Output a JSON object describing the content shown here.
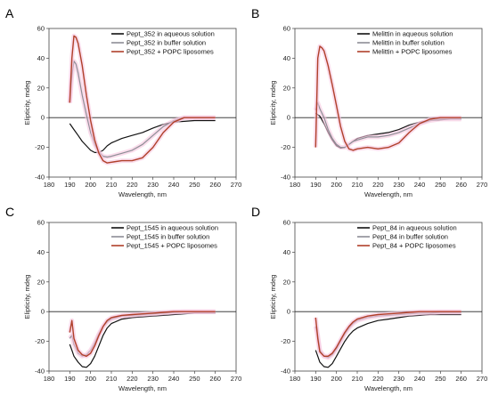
{
  "figure": {
    "x_axis_label": "Wavelength, nm",
    "y_axis_label": "Elipticity, mdeg"
  },
  "colors": {
    "black": "#111111",
    "gray": "#8e8e96",
    "red": "#b0402a",
    "band": "#f7c6df"
  },
  "chart_data": [
    {
      "panel": "A",
      "type": "line",
      "xlabel": "Wavelength, nm",
      "ylabel": "Elipticity, mdeg",
      "xlim": [
        180,
        270
      ],
      "ylim": [
        -40,
        60
      ],
      "xticks": [
        180,
        190,
        200,
        210,
        220,
        230,
        240,
        250,
        260,
        270
      ],
      "yticks": [
        -40,
        -20,
        0,
        20,
        40,
        60
      ],
      "legend_position": "top-right",
      "series": [
        {
          "name": "Pept_352 in aqueous solution",
          "color": "black",
          "x": [
            190,
            192,
            194,
            196,
            198,
            200,
            202,
            204,
            206,
            208,
            210,
            215,
            220,
            225,
            230,
            235,
            240,
            245,
            250,
            255,
            260
          ],
          "y": [
            -4,
            -8,
            -12,
            -16,
            -19,
            -22,
            -23.5,
            -23.5,
            -22,
            -19,
            -17,
            -14,
            -12,
            -10,
            -7,
            -4.5,
            -3,
            -2.5,
            -2,
            -2,
            -2
          ]
        },
        {
          "name": "Pept_352 in buffer solution",
          "color": "gray",
          "x": [
            190,
            191,
            192,
            193,
            194,
            196,
            198,
            200,
            202,
            204,
            206,
            208,
            210,
            215,
            220,
            225,
            230,
            235,
            240,
            245,
            250,
            255,
            260
          ],
          "y": [
            10,
            28,
            38,
            36,
            30,
            15,
            2,
            -10,
            -18,
            -23,
            -26,
            -26.5,
            -26,
            -24,
            -22,
            -18,
            -12,
            -6,
            -2,
            0,
            0,
            0,
            0
          ]
        },
        {
          "name": "Pept_352 + POPC liposomes",
          "color": "red",
          "x": [
            190,
            191,
            192,
            193,
            194,
            196,
            198,
            200,
            202,
            204,
            206,
            208,
            210,
            215,
            220,
            225,
            230,
            235,
            240,
            245,
            250,
            255,
            260
          ],
          "y": [
            10,
            40,
            55,
            54,
            50,
            35,
            15,
            -2,
            -15,
            -24,
            -29,
            -30.5,
            -30,
            -29,
            -29,
            -27,
            -20,
            -10,
            -3,
            0,
            0,
            0,
            0
          ]
        }
      ]
    },
    {
      "panel": "B",
      "type": "line",
      "xlabel": "Wavelength, nm",
      "ylabel": "Elipticity, mdeg",
      "xlim": [
        180,
        270
      ],
      "ylim": [
        -40,
        60
      ],
      "xticks": [
        180,
        190,
        200,
        210,
        220,
        230,
        240,
        250,
        260,
        270
      ],
      "yticks": [
        -40,
        -20,
        0,
        20,
        40,
        60
      ],
      "legend_position": "top-right",
      "series": [
        {
          "name": "Melittin in aqueous solution",
          "color": "black",
          "x": [
            190,
            192,
            194,
            196,
            198,
            200,
            202,
            204,
            206,
            208,
            210,
            215,
            220,
            225,
            230,
            235,
            240,
            245,
            250,
            255,
            260
          ],
          "y": [
            3,
            1,
            -4,
            -10,
            -15,
            -19,
            -20.5,
            -20,
            -18,
            -16,
            -14,
            -12,
            -11,
            -10,
            -8,
            -5,
            -3,
            -2,
            -1.5,
            -1,
            -1
          ]
        },
        {
          "name": "Melittin in buffer solution",
          "color": "gray",
          "x": [
            190,
            191,
            192,
            194,
            196,
            198,
            200,
            202,
            204,
            206,
            208,
            210,
            215,
            220,
            225,
            230,
            235,
            240,
            245,
            250,
            255,
            260
          ],
          "y": [
            5,
            10,
            6,
            0,
            -8,
            -14,
            -18,
            -20,
            -20,
            -18,
            -16,
            -15,
            -13,
            -13,
            -12,
            -10,
            -7,
            -4,
            -2,
            -1,
            -1,
            -1
          ]
        },
        {
          "name": "Melittin + POPC liposomes",
          "color": "red",
          "x": [
            190,
            191,
            192,
            193,
            194,
            195,
            196,
            198,
            200,
            202,
            204,
            206,
            208,
            210,
            215,
            220,
            225,
            230,
            235,
            240,
            245,
            250,
            255,
            260
          ],
          "y": [
            -20,
            40,
            48,
            47,
            45,
            40,
            35,
            22,
            8,
            -6,
            -16,
            -21,
            -22,
            -21,
            -20,
            -21,
            -20,
            -17,
            -10,
            -4,
            -1,
            0,
            0,
            0
          ]
        }
      ]
    },
    {
      "panel": "C",
      "type": "line",
      "xlabel": "Wavelength, nm",
      "ylabel": "Elipticity, mdeg",
      "xlim": [
        180,
        270
      ],
      "ylim": [
        -40,
        60
      ],
      "xticks": [
        180,
        190,
        200,
        210,
        220,
        230,
        240,
        250,
        260,
        270
      ],
      "yticks": [
        -40,
        -20,
        0,
        20,
        40,
        60
      ],
      "legend_position": "top-right",
      "series": [
        {
          "name": "Pept_1545 in aqueous solution",
          "color": "black",
          "x": [
            190,
            191,
            192,
            194,
            196,
            198,
            200,
            202,
            204,
            206,
            208,
            210,
            215,
            220,
            225,
            230,
            235,
            240,
            245,
            250,
            255,
            260
          ],
          "y": [
            -22,
            -26,
            -30,
            -34,
            -37,
            -37.5,
            -35,
            -30,
            -23,
            -16,
            -11,
            -8,
            -5,
            -4,
            -3.5,
            -3,
            -2.5,
            -2,
            -1.5,
            -1,
            -1,
            -1
          ]
        },
        {
          "name": "Pept_1545 in buffer solution",
          "color": "gray",
          "x": [
            190,
            191,
            192,
            194,
            196,
            198,
            200,
            202,
            204,
            206,
            208,
            210,
            215,
            220,
            225,
            230,
            235,
            240,
            245,
            250,
            255,
            260
          ],
          "y": [
            -18,
            -16,
            -22,
            -28,
            -30,
            -29,
            -26,
            -21,
            -15,
            -10,
            -7,
            -5,
            -3,
            -2.5,
            -2,
            -1.5,
            -1,
            -0.5,
            0,
            0,
            0,
            0
          ]
        },
        {
          "name": "Pept_1545 + POPC liposomes",
          "color": "red",
          "x": [
            190,
            191,
            192,
            194,
            196,
            198,
            200,
            202,
            204,
            206,
            208,
            210,
            215,
            220,
            225,
            230,
            235,
            240,
            245,
            250,
            255,
            260
          ],
          "y": [
            -14,
            -6,
            -18,
            -26,
            -29,
            -30,
            -28,
            -23,
            -16,
            -10,
            -6,
            -4,
            -2.5,
            -2,
            -1.5,
            -1,
            -0.5,
            0,
            0,
            0,
            0,
            0
          ]
        }
      ]
    },
    {
      "panel": "D",
      "type": "line",
      "xlabel": "Wavelength, nm",
      "ylabel": "Elipticity, mdeg",
      "xlim": [
        180,
        270
      ],
      "ylim": [
        -40,
        60
      ],
      "xticks": [
        180,
        190,
        200,
        210,
        220,
        230,
        240,
        250,
        260,
        270
      ],
      "yticks": [
        -40,
        -20,
        0,
        20,
        40,
        60
      ],
      "legend_position": "top-right",
      "series": [
        {
          "name": "Pept_84 in aqueous solution",
          "color": "black",
          "x": [
            190,
            191,
            192,
            194,
            196,
            198,
            200,
            202,
            204,
            206,
            208,
            210,
            215,
            220,
            225,
            230,
            235,
            240,
            245,
            250,
            255,
            260
          ],
          "y": [
            -26,
            -30,
            -34,
            -37,
            -37.5,
            -35,
            -30,
            -25,
            -20,
            -16,
            -13,
            -11,
            -8,
            -6,
            -5,
            -4,
            -3,
            -2.5,
            -2,
            -2,
            -2,
            -2
          ]
        },
        {
          "name": "Pept_84 in buffer solution",
          "color": "gray",
          "x": [
            190,
            191,
            192,
            194,
            196,
            198,
            200,
            202,
            204,
            206,
            208,
            210,
            215,
            220,
            225,
            230,
            235,
            240,
            245,
            250,
            255,
            260
          ],
          "y": [
            -10,
            -16,
            -26,
            -30,
            -31,
            -29,
            -25,
            -20,
            -15,
            -11,
            -8,
            -6,
            -4,
            -3,
            -2.5,
            -2,
            -1.5,
            -1,
            -1,
            -0.5,
            -0.5,
            -0.5
          ]
        },
        {
          "name": "Pept_84 + POPC liposomes",
          "color": "red",
          "x": [
            190,
            191,
            192,
            194,
            196,
            198,
            200,
            202,
            204,
            206,
            208,
            210,
            215,
            220,
            225,
            230,
            235,
            240,
            245,
            250,
            255,
            260
          ],
          "y": [
            -4,
            -18,
            -27,
            -30,
            -30,
            -28,
            -24,
            -19,
            -14,
            -10,
            -7,
            -5,
            -3,
            -2,
            -1.5,
            -1,
            -0.5,
            0,
            0,
            0,
            0,
            0
          ]
        }
      ]
    }
  ]
}
